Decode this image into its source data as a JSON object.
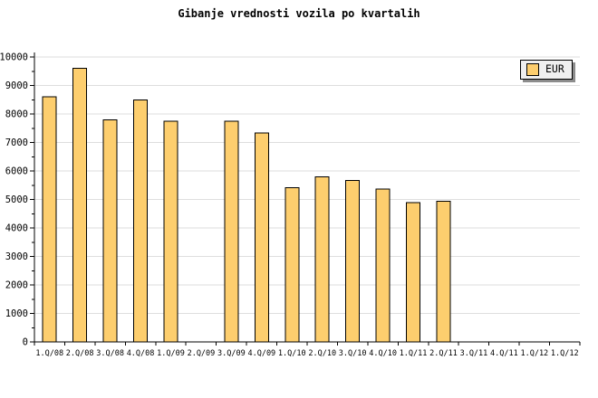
{
  "title": "Gibanje vrednosti vozila po kvartalih",
  "legend": {
    "items": [
      {
        "label": "EUR",
        "swatch_color": "#fdce6e"
      }
    ]
  },
  "colors": {
    "background": "#ffffff",
    "bar_fill": "#fdce6e",
    "bar_border": "#000000",
    "gridline": "#dedede",
    "axis": "#000000",
    "tick": "#000000",
    "text": "#000000",
    "legend_bg": "#efefef",
    "legend_border": "#000000",
    "legend_shadow": "#8c8c8c"
  },
  "chart_data": {
    "type": "bar",
    "title": "Gibanje vrednosti vozila po kvartalih",
    "categories": [
      "1.Q/08",
      "2.Q/08",
      "3.Q/08",
      "4.Q/08",
      "1.Q/09",
      "2.Q/09",
      "3.Q/09",
      "4.Q/09",
      "1.Q/10",
      "2.Q/10",
      "3.Q/10",
      "4.Q/10",
      "1.Q/11",
      "2.Q/11",
      "3.Q/11",
      "4.Q/11",
      "1.Q/12",
      "1.Q/12"
    ],
    "series": [
      {
        "name": "EUR",
        "values": [
          8600,
          9600,
          7800,
          8500,
          7750,
          null,
          7750,
          7340,
          5410,
          5800,
          5670,
          5370,
          4890,
          4940,
          null,
          null,
          null,
          null
        ]
      }
    ],
    "xlabel": "",
    "ylabel": "",
    "ylim": [
      0,
      10000
    ],
    "ytick_step": 1000,
    "ytick_minor_step": 500,
    "ytick_labels": [
      "0",
      "1000",
      "2000",
      "3000",
      "4000",
      "5000",
      "6000",
      "7000",
      "8000",
      "9000",
      "10000"
    ],
    "grid": "horizontal-major",
    "legend_position": "top-right"
  }
}
